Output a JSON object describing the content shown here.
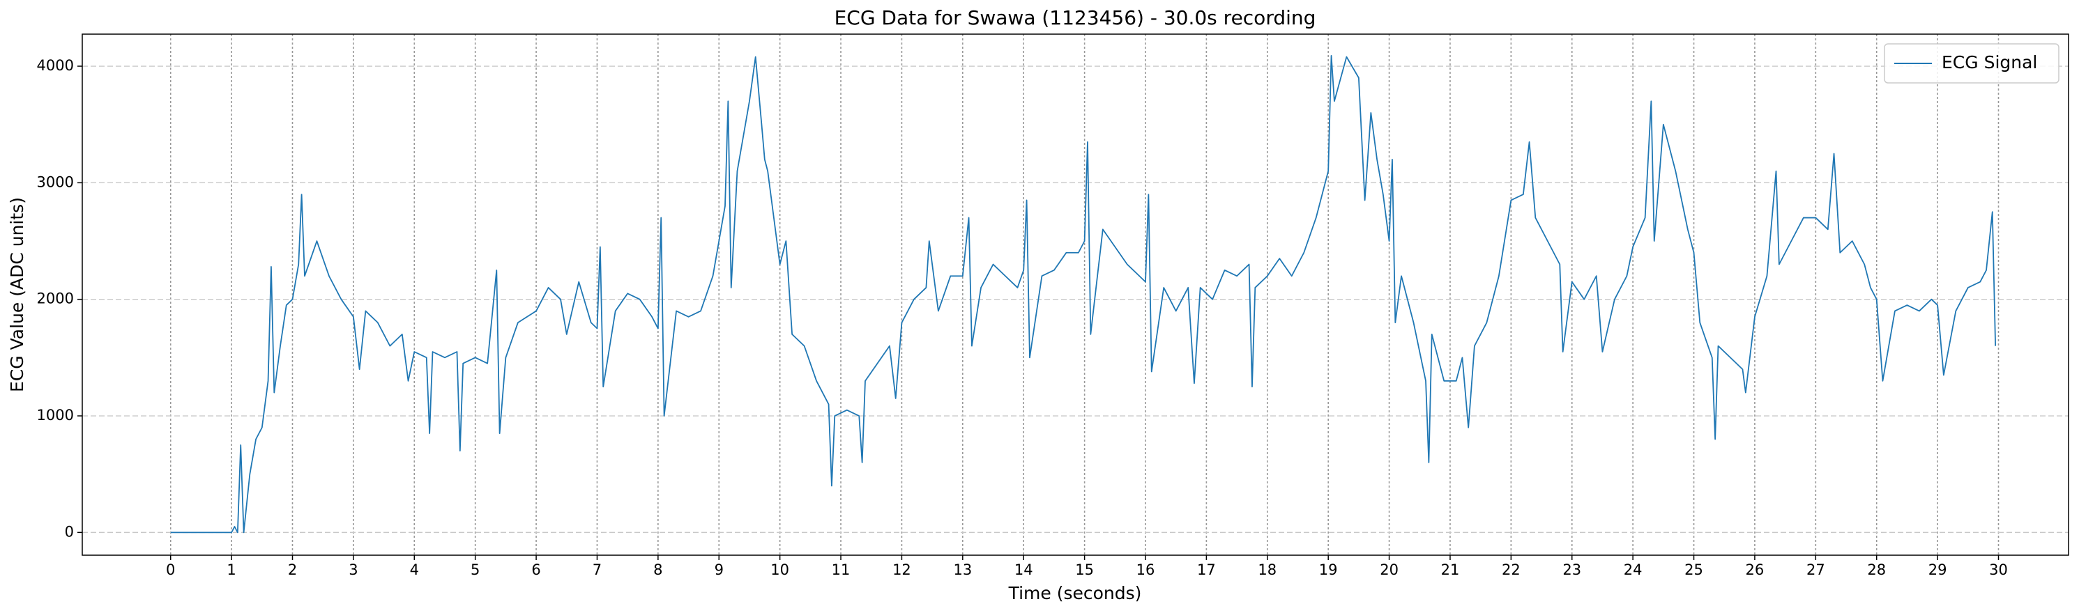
{
  "chart_data": {
    "type": "line",
    "title": "ECG Data for Swawa (1123456) - 30.0s recording",
    "x_label": "Time (seconds)",
    "y_label": "ECG Value (ADC units)",
    "x": [
      0,
      0.5,
      1.0,
      1.05,
      1.1,
      1.15,
      1.2,
      1.3,
      1.4,
      1.5,
      1.6,
      1.65,
      1.7,
      1.8,
      1.9,
      2.0,
      2.1,
      2.15,
      2.2,
      2.4,
      2.6,
      2.8,
      3.0,
      3.1,
      3.2,
      3.4,
      3.6,
      3.8,
      3.9,
      4.0,
      4.2,
      4.25,
      4.3,
      4.5,
      4.7,
      4.75,
      4.8,
      5.0,
      5.2,
      5.35,
      5.4,
      5.5,
      5.7,
      6.0,
      6.2,
      6.4,
      6.5,
      6.7,
      6.9,
      7.0,
      7.05,
      7.1,
      7.3,
      7.5,
      7.7,
      7.9,
      8.0,
      8.05,
      8.1,
      8.3,
      8.5,
      8.7,
      8.9,
      9.0,
      9.1,
      9.15,
      9.2,
      9.3,
      9.5,
      9.6,
      9.7,
      9.75,
      9.8,
      9.9,
      10.0,
      10.1,
      10.2,
      10.4,
      10.6,
      10.8,
      10.85,
      10.9,
      11.1,
      11.3,
      11.35,
      11.4,
      11.6,
      11.8,
      11.9,
      12.0,
      12.2,
      12.4,
      12.45,
      12.6,
      12.8,
      13.0,
      13.1,
      13.15,
      13.3,
      13.5,
      13.7,
      13.9,
      14.0,
      14.05,
      14.1,
      14.3,
      14.5,
      14.7,
      14.9,
      15.0,
      15.05,
      15.1,
      15.3,
      15.5,
      15.7,
      15.9,
      16.0,
      16.05,
      16.1,
      16.3,
      16.5,
      16.7,
      16.8,
      16.9,
      17.1,
      17.3,
      17.5,
      17.7,
      17.75,
      17.8,
      18.0,
      18.2,
      18.4,
      18.6,
      18.8,
      19.0,
      19.05,
      19.1,
      19.3,
      19.5,
      19.6,
      19.7,
      19.8,
      19.9,
      20.0,
      20.05,
      20.1,
      20.2,
      20.4,
      20.6,
      20.65,
      20.7,
      20.9,
      21.1,
      21.2,
      21.3,
      21.4,
      21.6,
      21.8,
      22.0,
      22.2,
      22.3,
      22.4,
      22.6,
      22.8,
      22.85,
      23.0,
      23.2,
      23.4,
      23.5,
      23.7,
      23.9,
      24.0,
      24.2,
      24.3,
      24.35,
      24.5,
      24.7,
      24.9,
      25.0,
      25.1,
      25.3,
      25.35,
      25.4,
      25.6,
      25.8,
      25.85,
      26.0,
      26.2,
      26.35,
      26.4,
      26.6,
      26.8,
      27.0,
      27.2,
      27.3,
      27.4,
      27.6,
      27.8,
      27.9,
      28.0,
      28.1,
      28.3,
      28.5,
      28.7,
      28.9,
      29.0,
      29.1,
      29.3,
      29.5,
      29.7,
      29.8,
      29.9,
      29.95
    ],
    "series": [
      {
        "name": "ECG Signal",
        "color": "#1f77b4",
        "values": [
          0,
          0,
          0,
          50,
          0,
          750,
          0,
          500,
          800,
          900,
          1300,
          2280,
          1200,
          1600,
          1950,
          2000,
          2300,
          2900,
          2200,
          2500,
          2200,
          2000,
          1850,
          1400,
          1900,
          1800,
          1600,
          1700,
          1300,
          1550,
          1500,
          850,
          1550,
          1500,
          1550,
          700,
          1450,
          1500,
          1450,
          2250,
          850,
          1500,
          1800,
          1900,
          2100,
          2000,
          1700,
          2150,
          1800,
          1750,
          2450,
          1250,
          1900,
          2050,
          2000,
          1850,
          1750,
          2700,
          1000,
          1900,
          1850,
          1900,
          2200,
          2500,
          2800,
          3700,
          2100,
          3100,
          3700,
          4080,
          3500,
          3200,
          3100,
          2700,
          2300,
          2500,
          1700,
          1600,
          1300,
          1100,
          400,
          1000,
          1050,
          1000,
          600,
          1300,
          1450,
          1600,
          1150,
          1800,
          2000,
          2100,
          2500,
          1900,
          2200,
          2200,
          2700,
          1600,
          2100,
          2300,
          2200,
          2100,
          2250,
          2850,
          1500,
          2200,
          2250,
          2400,
          2400,
          2500,
          3350,
          1700,
          2600,
          2450,
          2300,
          2200,
          2150,
          2900,
          1380,
          2100,
          1900,
          2100,
          1280,
          2100,
          2000,
          2250,
          2200,
          2300,
          1250,
          2100,
          2200,
          2350,
          2200,
          2400,
          2700,
          3100,
          4090,
          3700,
          4080,
          3900,
          2850,
          3600,
          3200,
          2900,
          2500,
          3200,
          1800,
          2200,
          1800,
          1300,
          600,
          1700,
          1300,
          1300,
          1500,
          900,
          1600,
          1800,
          2200,
          2850,
          2900,
          3350,
          2700,
          2500,
          2300,
          1550,
          2150,
          2000,
          2200,
          1550,
          2000,
          2200,
          2450,
          2700,
          3700,
          2500,
          3500,
          3100,
          2600,
          2400,
          1800,
          1500,
          800,
          1600,
          1500,
          1400,
          1200,
          1850,
          2200,
          3100,
          2300,
          2500,
          2700,
          2700,
          2600,
          3250,
          2400,
          2500,
          2300,
          2100,
          2000,
          1300,
          1900,
          1950,
          1900,
          2000,
          1950,
          1350,
          1900,
          2100,
          2150,
          2250,
          2750,
          1600
        ]
      }
    ],
    "xlim": [
      -1.45,
      31.15
    ],
    "ylim": [
      -195,
      4275
    ],
    "xticks": [
      0,
      1,
      2,
      3,
      4,
      5,
      6,
      7,
      8,
      9,
      10,
      11,
      12,
      13,
      14,
      15,
      16,
      17,
      18,
      19,
      20,
      21,
      22,
      23,
      24,
      25,
      26,
      27,
      28,
      29,
      30
    ],
    "yticks": [
      0,
      1000,
      2000,
      3000,
      4000
    ],
    "grid": true,
    "legend": "upper right"
  }
}
